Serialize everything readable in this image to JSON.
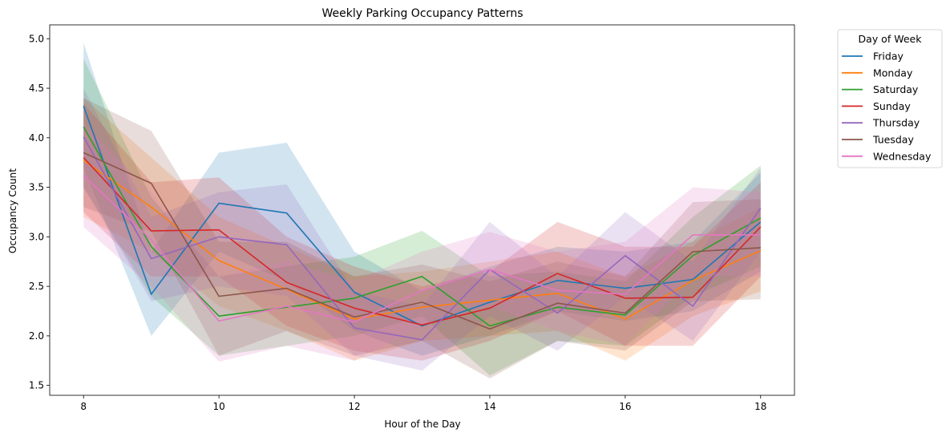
{
  "chart_data": {
    "type": "line",
    "title": "Weekly Parking Occupancy Patterns",
    "xlabel": "Hour of the Day",
    "ylabel": "Occupancy Count",
    "xlim": [
      7.5,
      18.5
    ],
    "ylim": [
      1.4,
      5.14
    ],
    "xticks": [
      8,
      10,
      12,
      14,
      16,
      18
    ],
    "yticks": [
      1.5,
      2.0,
      2.5,
      3.0,
      3.5,
      4.0,
      4.5,
      5.0
    ],
    "ytick_labels": [
      "1.5",
      "2.0",
      "2.5",
      "3.0",
      "3.5",
      "4.0",
      "4.5",
      "5.0"
    ],
    "grid": false,
    "legend": {
      "title": "Day of Week",
      "placement": "outside-top-right"
    },
    "x": [
      8,
      9,
      10,
      11,
      12,
      13,
      14,
      15,
      16,
      17,
      18
    ],
    "series": [
      {
        "name": "Friday",
        "color": "#1f77b4",
        "values": [
          4.32,
          2.42,
          3.34,
          3.24,
          2.44,
          2.1,
          2.34,
          2.56,
          2.48,
          2.57,
          3.15
        ],
        "lower": [
          3.7,
          2.0,
          2.85,
          2.55,
          2.05,
          1.8,
          2.0,
          2.25,
          2.15,
          2.25,
          2.65
        ],
        "upper": [
          4.96,
          2.85,
          3.85,
          3.95,
          2.85,
          2.45,
          2.7,
          2.9,
          2.85,
          2.95,
          3.65
        ]
      },
      {
        "name": "Monday",
        "color": "#ff7f0e",
        "values": [
          3.77,
          3.3,
          2.76,
          2.47,
          2.17,
          2.29,
          2.36,
          2.43,
          2.17,
          2.56,
          2.86
        ],
        "lower": [
          3.2,
          2.85,
          2.3,
          2.05,
          1.75,
          1.95,
          2.0,
          2.05,
          1.75,
          2.2,
          2.45
        ],
        "upper": [
          4.4,
          3.8,
          3.2,
          2.9,
          2.6,
          2.65,
          2.75,
          2.85,
          2.6,
          2.95,
          3.3
        ]
      },
      {
        "name": "Saturday",
        "color": "#2ca02c",
        "values": [
          4.11,
          2.9,
          2.2,
          2.29,
          2.38,
          2.6,
          2.1,
          2.29,
          2.21,
          2.81,
          3.19
        ],
        "lower": [
          3.5,
          2.4,
          1.8,
          1.9,
          2.0,
          2.2,
          1.6,
          1.95,
          1.9,
          2.4,
          2.7
        ],
        "upper": [
          4.8,
          3.4,
          2.6,
          2.7,
          2.8,
          3.06,
          2.6,
          2.65,
          2.55,
          3.2,
          3.72
        ]
      },
      {
        "name": "Sunday",
        "color": "#d62728",
        "values": [
          3.8,
          3.06,
          3.07,
          2.54,
          2.28,
          2.11,
          2.28,
          2.63,
          2.38,
          2.39,
          3.1
        ],
        "lower": [
          3.25,
          2.6,
          2.6,
          2.1,
          1.85,
          1.75,
          1.95,
          2.25,
          1.9,
          1.9,
          2.6
        ],
        "upper": [
          4.35,
          3.55,
          3.6,
          3.0,
          2.7,
          2.5,
          2.65,
          3.15,
          2.9,
          2.9,
          3.55
        ]
      },
      {
        "name": "Thursday",
        "color": "#9467bd",
        "values": [
          4.01,
          2.78,
          3.0,
          2.92,
          2.08,
          1.96,
          2.67,
          2.23,
          2.81,
          2.3,
          3.29
        ],
        "lower": [
          3.5,
          2.35,
          2.5,
          2.4,
          1.8,
          1.65,
          2.2,
          1.85,
          2.4,
          1.95,
          2.85
        ],
        "upper": [
          4.5,
          3.2,
          3.45,
          3.53,
          2.45,
          2.3,
          3.15,
          2.6,
          3.25,
          2.75,
          3.7
        ]
      },
      {
        "name": "Tuesday",
        "color": "#8c564b",
        "values": [
          3.85,
          3.54,
          2.4,
          2.48,
          2.19,
          2.34,
          2.07,
          2.33,
          2.23,
          2.85,
          2.89
        ],
        "lower": [
          3.3,
          3.05,
          1.8,
          2.05,
          1.8,
          1.95,
          1.57,
          1.95,
          1.85,
          2.35,
          2.37
        ],
        "upper": [
          4.4,
          4.07,
          2.95,
          2.95,
          2.6,
          2.72,
          2.55,
          2.75,
          2.6,
          3.35,
          3.38
        ]
      },
      {
        "name": "Wednesday",
        "color": "#e377c2",
        "values": [
          3.62,
          2.97,
          2.15,
          2.3,
          2.14,
          2.46,
          2.67,
          2.46,
          2.42,
          3.02,
          3.02
        ],
        "lower": [
          3.1,
          2.5,
          1.74,
          1.9,
          1.75,
          2.1,
          2.3,
          2.05,
          1.9,
          2.6,
          2.6
        ],
        "upper": [
          4.15,
          3.45,
          2.6,
          2.75,
          2.55,
          2.85,
          3.05,
          2.85,
          2.95,
          3.5,
          3.45
        ]
      }
    ]
  }
}
